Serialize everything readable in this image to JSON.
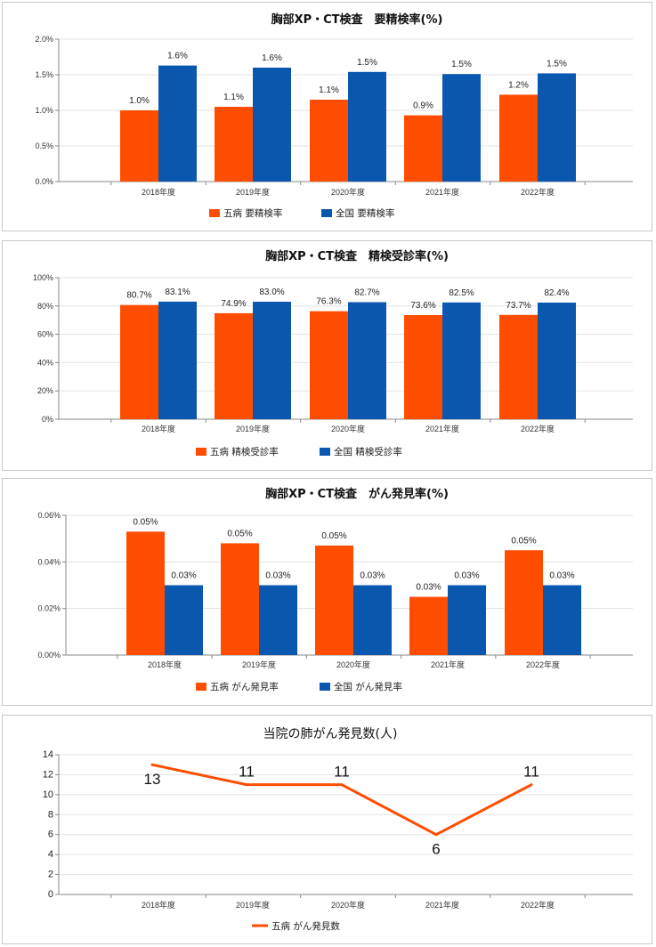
{
  "colors": {
    "series1": "#ff4d00",
    "series2": "#0a57b0",
    "grid": "#e3e3e3",
    "axis": "#888888"
  },
  "chart_data": [
    {
      "type": "bar",
      "title": "胸部XP・CT検査　要精検率(%)",
      "categories": [
        "2018年度",
        "2019年度",
        "2020年度",
        "2021年度",
        "2022年度"
      ],
      "series": [
        {
          "name": "五病 要精検率",
          "values": [
            1.0,
            1.05,
            1.15,
            0.93,
            1.22
          ],
          "labels": [
            "1.0%",
            "1.1%",
            "1.1%",
            "0.9%",
            "1.2%"
          ]
        },
        {
          "name": "全国 要精検率",
          "values": [
            1.63,
            1.6,
            1.54,
            1.51,
            1.52
          ],
          "labels": [
            "1.6%",
            "1.6%",
            "1.5%",
            "1.5%",
            "1.5%"
          ]
        }
      ],
      "ylim": [
        0,
        2.0
      ],
      "yticks": [
        "0.0%",
        "0.5%",
        "1.0%",
        "1.5%",
        "2.0%"
      ],
      "grid": true,
      "legend": "bottom"
    },
    {
      "type": "bar",
      "title": "胸部XP・CT検査　精検受診率(%)",
      "categories": [
        "2018年度",
        "2019年度",
        "2020年度",
        "2021年度",
        "2022年度"
      ],
      "series": [
        {
          "name": "五病 精検受診率",
          "values": [
            80.7,
            74.9,
            76.3,
            73.6,
            73.7
          ],
          "labels": [
            "80.7%",
            "74.9%",
            "76.3%",
            "73.6%",
            "73.7%"
          ]
        },
        {
          "name": "全国 精検受診率",
          "values": [
            83.1,
            83.0,
            82.7,
            82.5,
            82.4
          ],
          "labels": [
            "83.1%",
            "83.0%",
            "82.7%",
            "82.5%",
            "82.4%"
          ]
        }
      ],
      "ylim": [
        0,
        100
      ],
      "yticks": [
        "0%",
        "20%",
        "40%",
        "60%",
        "80%",
        "100%"
      ],
      "grid": true,
      "legend": "bottom"
    },
    {
      "type": "bar",
      "title": "胸部XP・CT検査　がん発見率(%)",
      "categories": [
        "2018年度",
        "2019年度",
        "2020年度",
        "2021年度",
        "2022年度"
      ],
      "series": [
        {
          "name": "五病 がん発見率",
          "values": [
            0.053,
            0.048,
            0.047,
            0.025,
            0.045
          ],
          "labels": [
            "0.05%",
            "0.05%",
            "0.05%",
            "0.03%",
            "0.05%"
          ]
        },
        {
          "name": "全国 がん発見率",
          "values": [
            0.03,
            0.03,
            0.03,
            0.03,
            0.03
          ],
          "labels": [
            "0.03%",
            "0.03%",
            "0.03%",
            "0.03%",
            "0.03%"
          ]
        }
      ],
      "ylim": [
        0,
        0.06
      ],
      "yticks": [
        "0.00%",
        "0.02%",
        "0.04%",
        "0.06%"
      ],
      "grid": true,
      "legend": "bottom"
    },
    {
      "type": "line",
      "title": "当院の肺がん発見数(人)",
      "categories": [
        "2018年度",
        "2019年度",
        "2020年度",
        "2021年度",
        "2022年度"
      ],
      "series": [
        {
          "name": "五病 がん発見数",
          "values": [
            13,
            11,
            11,
            6,
            11
          ],
          "labels": [
            "13",
            "11",
            "11",
            "6",
            "11"
          ]
        }
      ],
      "ylim": [
        0,
        14
      ],
      "yticks": [
        "0",
        "2",
        "4",
        "6",
        "8",
        "10",
        "12",
        "14"
      ],
      "grid": true,
      "legend": "bottom"
    }
  ]
}
